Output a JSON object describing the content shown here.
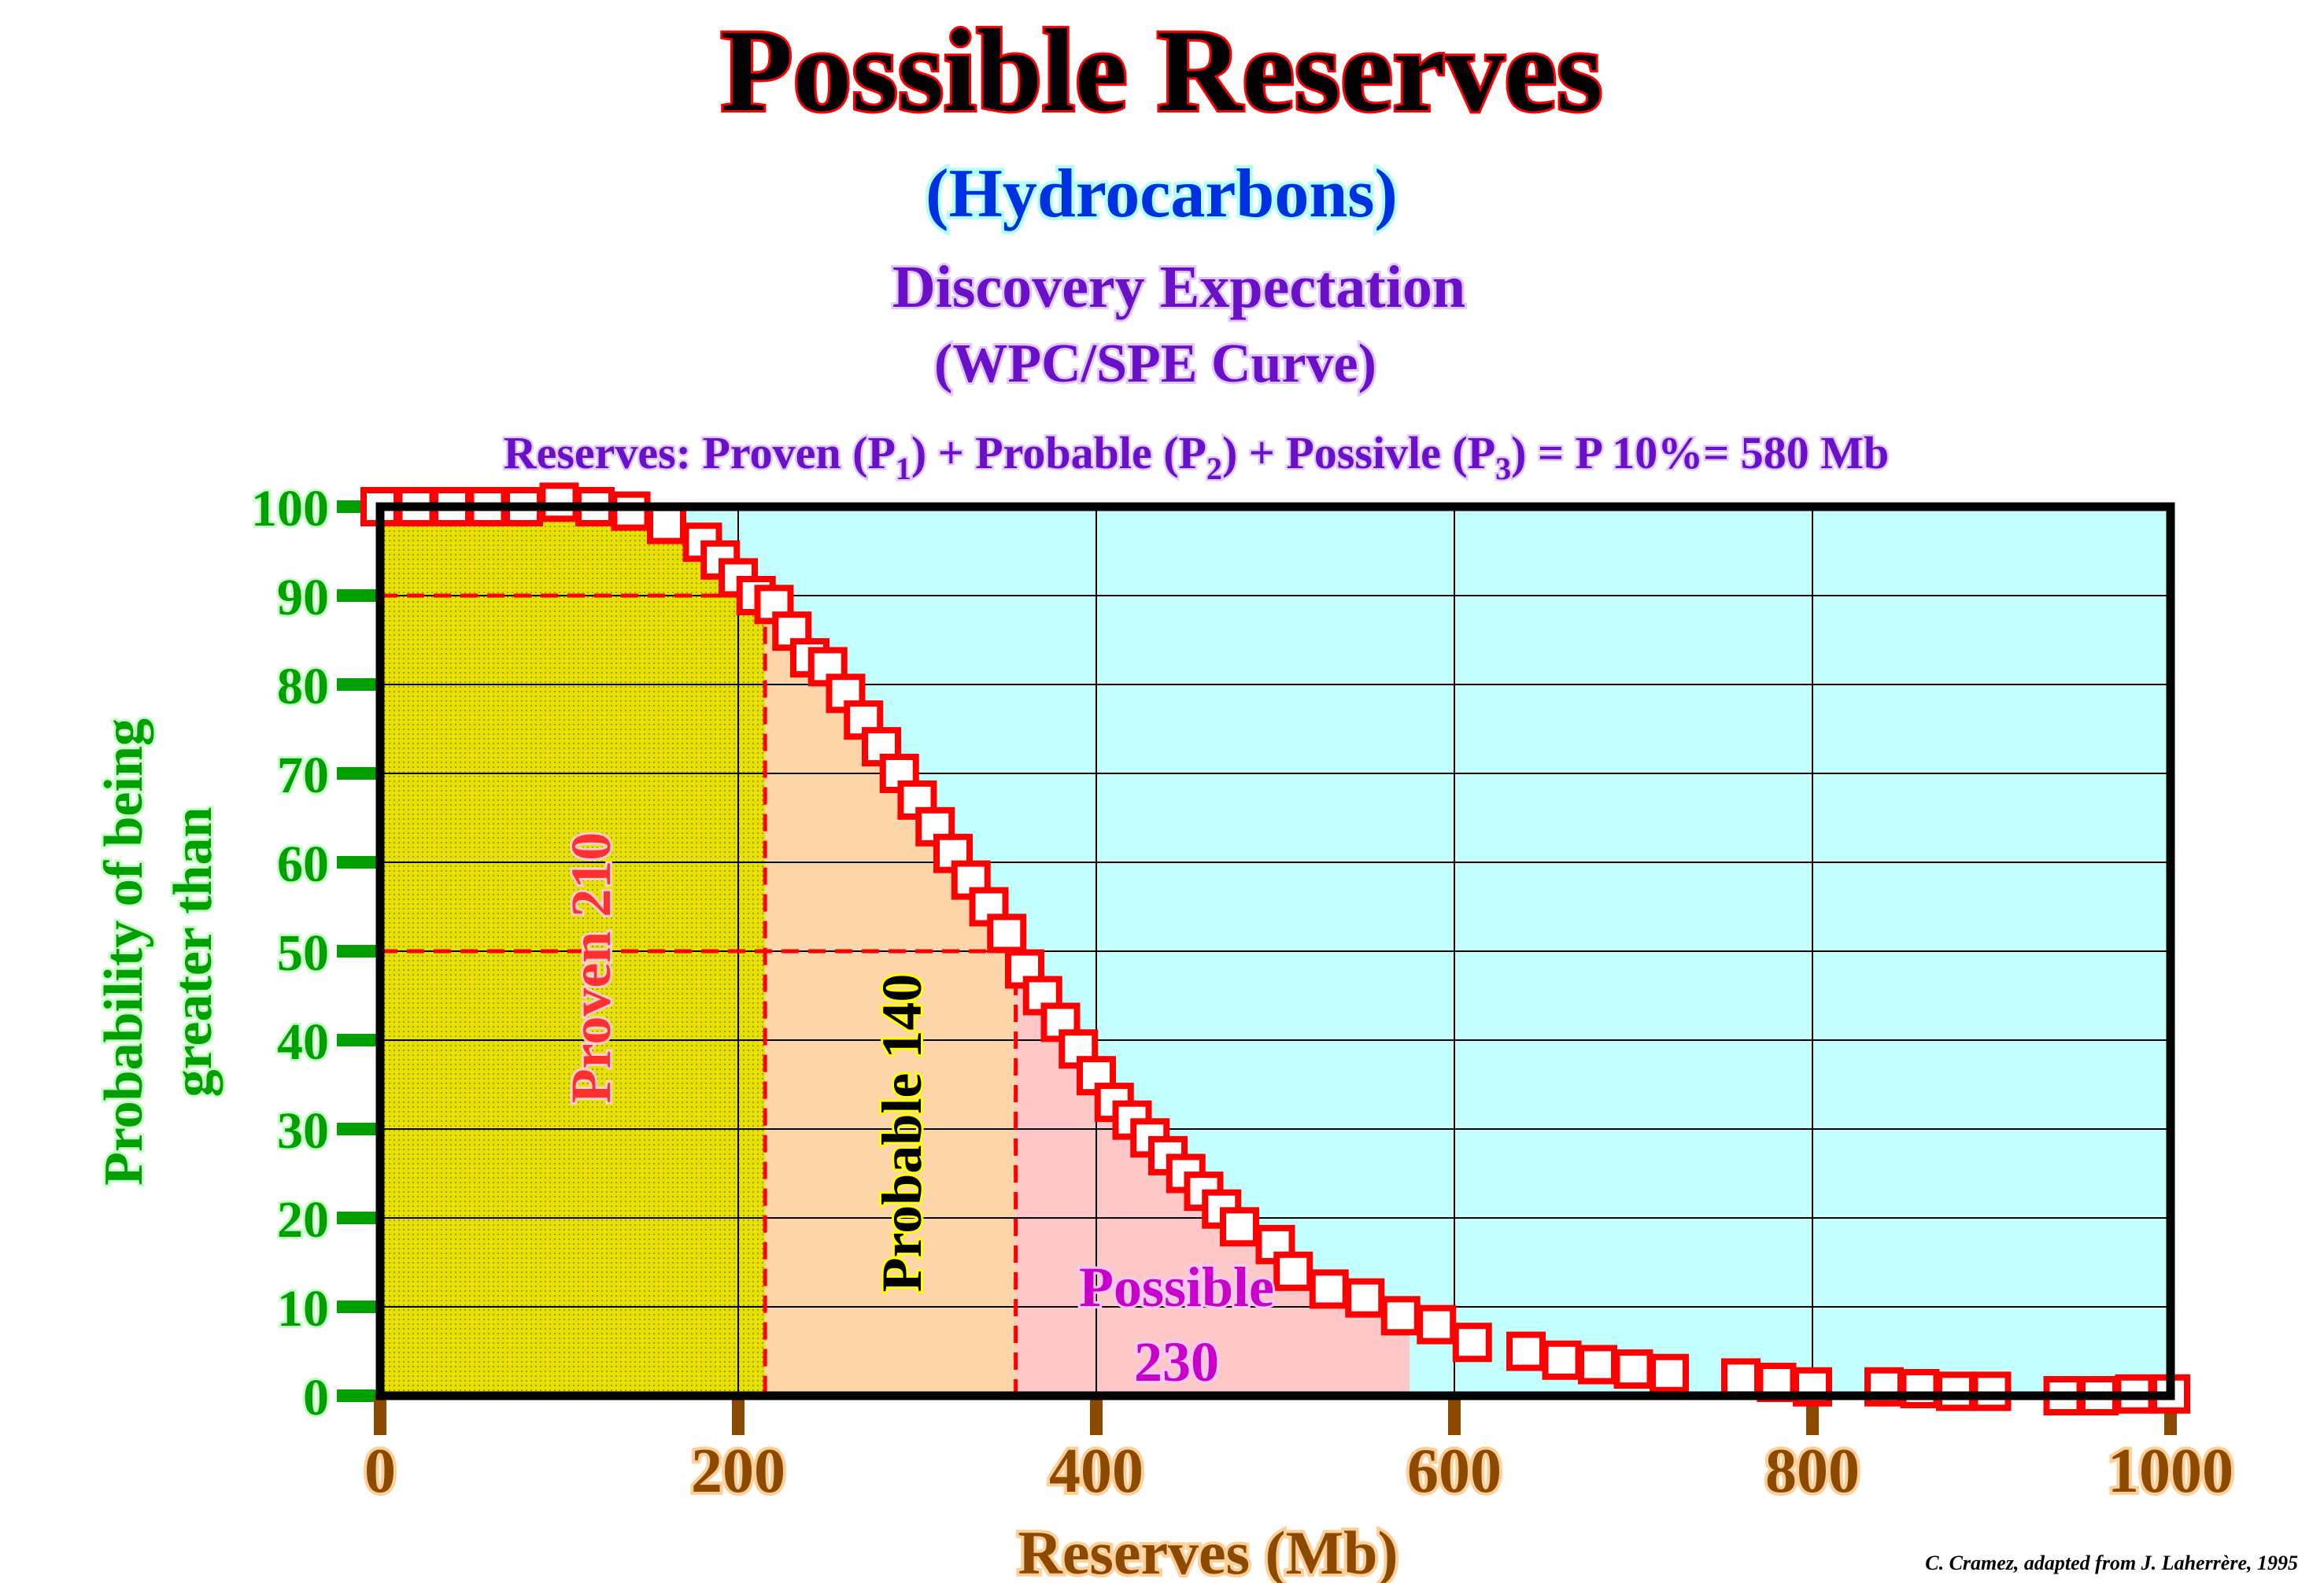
{
  "title": "Possible Reserves",
  "subtitle": "(Hydrocarbons)",
  "heading": "Discovery Expectation",
  "subheading": "(WPC/SPE Curve)",
  "equation": {
    "prefix": "Reserves: Proven  (P",
    "s1": "1",
    "mid1": ") + Probable (P",
    "s2": "2",
    "mid2": ") + Possivle (P",
    "s3": "3",
    "suffix": ") = P 10%= 580 Mb"
  },
  "credit": "C. Cramez, adapted from J. Laherrère, 1995",
  "colors": {
    "plot_bg": "#c4ffff",
    "proven": "#e8e000",
    "probable": "#fcd5a8",
    "possible": "#ffc8c8",
    "marker": "#ff0000",
    "title": "#ff0000",
    "y_axis": "#00a000",
    "x_axis": "#8b4a00"
  },
  "chart_data": {
    "type": "scatter",
    "xlabel": "Reserves (Mb)",
    "ylabel_line1": "Probability of being",
    "ylabel_line2": "greater than",
    "xlim": [
      0,
      1000
    ],
    "ylim": [
      0,
      100
    ],
    "xticks": [
      "0",
      "200",
      "400",
      "600",
      "800",
      "1000"
    ],
    "yticks": [
      "0",
      "10",
      "20",
      "30",
      "40",
      "50",
      "60",
      "70",
      "80",
      "90",
      "100"
    ],
    "grid": true,
    "marker": "open-square",
    "x": [
      0,
      20,
      40,
      60,
      80,
      100,
      120,
      140,
      160,
      180,
      190,
      200,
      210,
      220,
      230,
      240,
      250,
      260,
      270,
      280,
      290,
      300,
      310,
      320,
      330,
      340,
      350,
      360,
      370,
      380,
      390,
      400,
      410,
      420,
      430,
      440,
      450,
      460,
      470,
      480,
      500,
      510,
      530,
      550,
      570,
      590,
      610,
      640,
      660,
      680,
      700,
      720,
      760,
      780,
      800,
      840,
      860,
      880,
      900,
      940,
      960,
      980,
      1000
    ],
    "y": [
      100,
      100,
      100,
      100,
      100,
      100.5,
      100,
      99.5,
      98,
      96,
      94,
      92,
      90,
      89,
      86,
      83,
      82,
      79,
      76,
      73,
      70,
      67,
      64,
      61,
      58,
      55,
      52,
      48,
      45,
      42,
      39,
      36,
      33,
      31,
      29,
      27,
      25,
      23,
      21,
      19,
      17,
      14,
      12,
      11,
      9,
      8,
      6,
      5,
      4,
      3.5,
      3,
      2.5,
      2,
      1.5,
      1,
      1,
      0.8,
      0.5,
      0.5,
      0,
      0,
      0.2,
      0.2
    ],
    "regions": [
      {
        "label": "Proven",
        "value": "210",
        "x_range": [
          0,
          215
        ]
      },
      {
        "label": "Probable",
        "value": "140",
        "x_range": [
          215,
          355
        ]
      },
      {
        "label": "Possible",
        "value": "230",
        "x_range": [
          355,
          575
        ]
      }
    ],
    "reference_lines": [
      {
        "probability": 90,
        "reserves": 210
      },
      {
        "probability": 50,
        "reserves": 355
      }
    ]
  }
}
